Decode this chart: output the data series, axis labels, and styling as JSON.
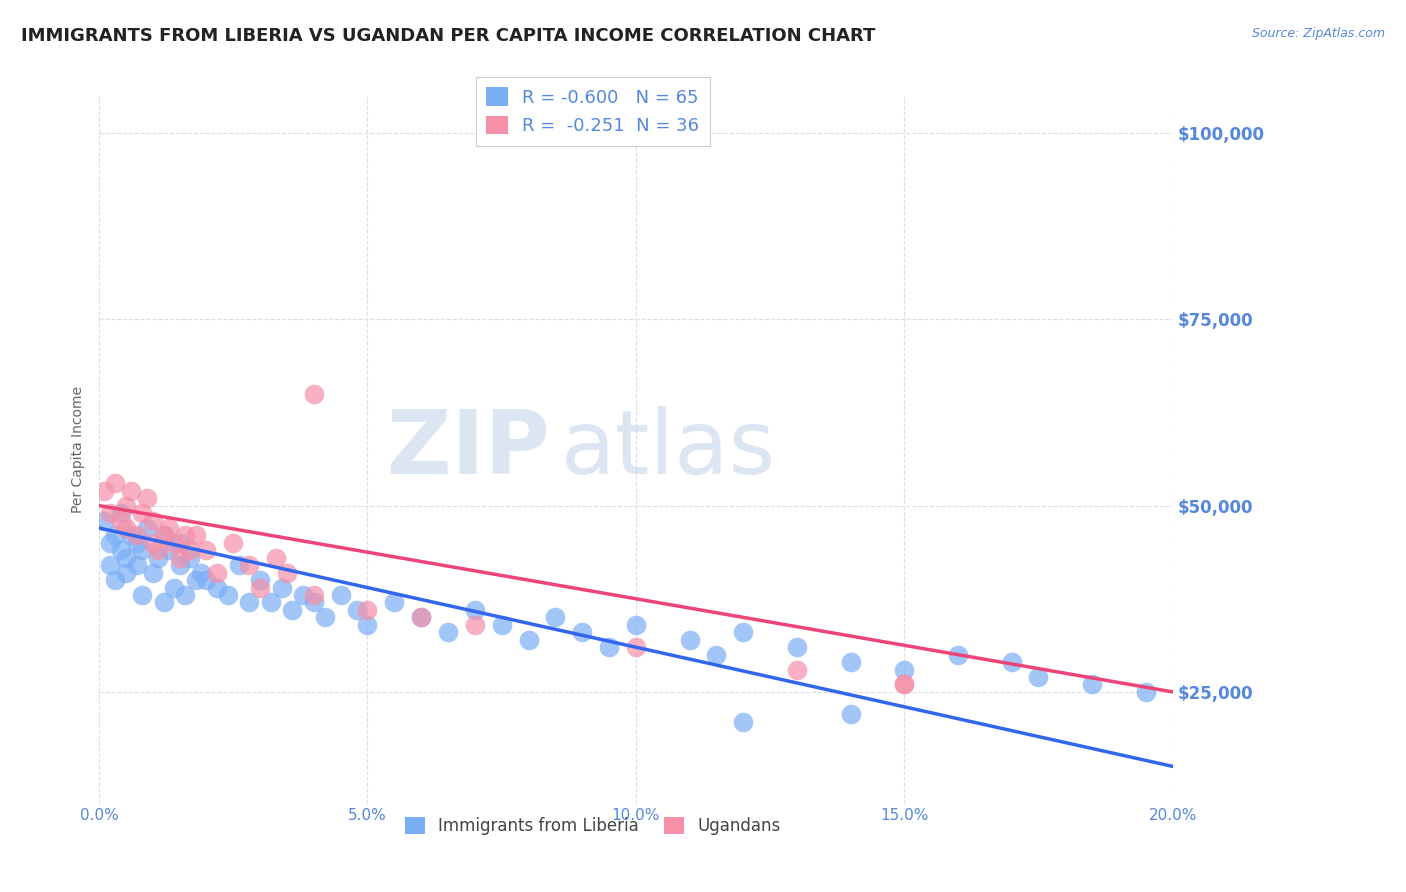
{
  "title": "IMMIGRANTS FROM LIBERIA VS UGANDAN PER CAPITA INCOME CORRELATION CHART",
  "source_text": "Source: ZipAtlas.com",
  "ylabel": "Per Capita Income",
  "xlabel": "",
  "xlim": [
    0.0,
    0.2
  ],
  "ylim": [
    10000,
    105000
  ],
  "yticks": [
    25000,
    50000,
    75000,
    100000
  ],
  "ytick_labels": [
    "$25,000",
    "$50,000",
    "$75,000",
    "$100,000"
  ],
  "xtick_labels": [
    "0.0%",
    "5.0%",
    "10.0%",
    "15.0%",
    "20.0%"
  ],
  "xticks": [
    0.0,
    0.05,
    0.1,
    0.15,
    0.2
  ],
  "blue_color": "#7aaef5",
  "pink_color": "#f590a8",
  "line_blue": "#3366ee",
  "line_pink": "#ee4477",
  "legend_R1": "R = -0.600",
  "legend_N1": "N = 65",
  "legend_R2": "R =  -0.251",
  "legend_N2": "N = 36",
  "label1": "Immigrants from Liberia",
  "label2": "Ugandans",
  "watermark_zip": "ZIP",
  "watermark_atlas": "atlas",
  "title_color": "#222222",
  "axis_color": "#5588dd",
  "grid_color": "#ddddee",
  "background_color": "#ffffff",
  "blue_line_x0": 0.0,
  "blue_line_y0": 47000,
  "blue_line_x1": 0.2,
  "blue_line_y1": 15000,
  "pink_line_x0": 0.0,
  "pink_line_y0": 50000,
  "pink_line_x1": 0.2,
  "pink_line_y1": 25000,
  "blue_scatter_x": [
    0.001,
    0.002,
    0.002,
    0.003,
    0.003,
    0.004,
    0.004,
    0.005,
    0.005,
    0.006,
    0.007,
    0.007,
    0.008,
    0.008,
    0.009,
    0.01,
    0.011,
    0.012,
    0.012,
    0.013,
    0.014,
    0.015,
    0.015,
    0.016,
    0.017,
    0.018,
    0.019,
    0.02,
    0.022,
    0.024,
    0.026,
    0.028,
    0.03,
    0.032,
    0.034,
    0.036,
    0.038,
    0.04,
    0.042,
    0.045,
    0.048,
    0.05,
    0.055,
    0.06,
    0.065,
    0.07,
    0.075,
    0.08,
    0.085,
    0.09,
    0.095,
    0.1,
    0.11,
    0.115,
    0.12,
    0.13,
    0.14,
    0.15,
    0.16,
    0.17,
    0.175,
    0.185,
    0.195,
    0.14,
    0.12
  ],
  "blue_scatter_y": [
    48000,
    45000,
    42000,
    46000,
    40000,
    44000,
    49000,
    43000,
    41000,
    46000,
    45000,
    42000,
    44000,
    38000,
    47000,
    41000,
    43000,
    46000,
    37000,
    44000,
    39000,
    42000,
    45000,
    38000,
    43000,
    40000,
    41000,
    40000,
    39000,
    38000,
    42000,
    37000,
    40000,
    37000,
    39000,
    36000,
    38000,
    37000,
    35000,
    38000,
    36000,
    34000,
    37000,
    35000,
    33000,
    36000,
    34000,
    32000,
    35000,
    33000,
    31000,
    34000,
    32000,
    30000,
    33000,
    31000,
    29000,
    28000,
    30000,
    29000,
    27000,
    26000,
    25000,
    22000,
    21000
  ],
  "pink_scatter_x": [
    0.001,
    0.002,
    0.003,
    0.004,
    0.005,
    0.005,
    0.006,
    0.007,
    0.008,
    0.009,
    0.01,
    0.01,
    0.011,
    0.012,
    0.013,
    0.014,
    0.015,
    0.016,
    0.017,
    0.018,
    0.02,
    0.022,
    0.025,
    0.028,
    0.03,
    0.033,
    0.035,
    0.04,
    0.05,
    0.06,
    0.07,
    0.1,
    0.13,
    0.15,
    0.15,
    0.04
  ],
  "pink_scatter_y": [
    52000,
    49000,
    53000,
    48000,
    50000,
    47000,
    52000,
    46000,
    49000,
    51000,
    45000,
    48000,
    44000,
    46000,
    47000,
    45000,
    43000,
    46000,
    44000,
    46000,
    44000,
    41000,
    45000,
    42000,
    39000,
    43000,
    41000,
    38000,
    36000,
    35000,
    34000,
    31000,
    28000,
    26000,
    26000,
    65000
  ]
}
